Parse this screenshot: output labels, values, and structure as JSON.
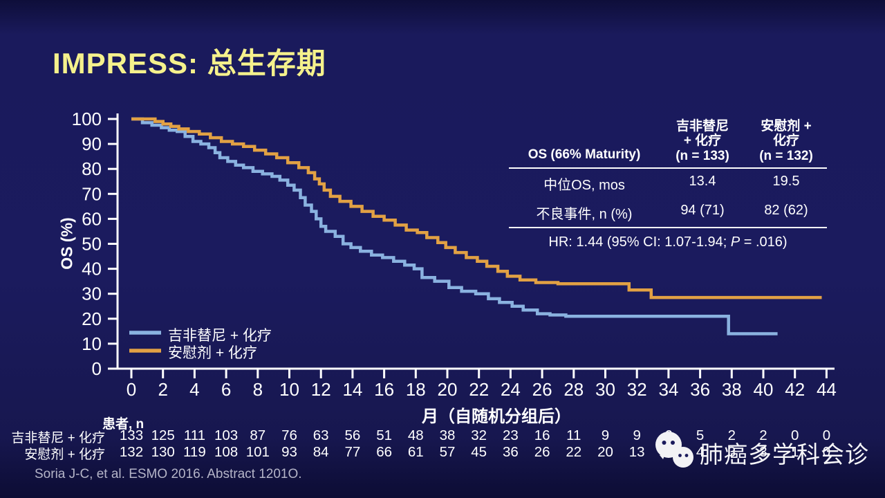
{
  "slide": {
    "title": "IMPRESS: 总生存期",
    "footnote": "Soria J-C, et al. ESMO 2016. Abstract 1201O.",
    "watermark_text": "肺癌多学科会诊",
    "watermark_icon": "wechat-chat-bubbles"
  },
  "colors": {
    "background": "#1b1b5e",
    "title": "#f5f18c",
    "axis": "#ffffff",
    "text": "#ffffff",
    "footnote": "#b5b5c8",
    "gefitinib_line": "#8ab2e0",
    "placebo_line": "#e2a144"
  },
  "stats_table": {
    "header_left": "OS (66% Maturity)",
    "col2_header": "吉非替尼\n+ 化疗\n(n = 133)",
    "col3_header": "安慰剂 +\n化疗\n(n = 132)",
    "rows": [
      {
        "label": "中位OS, mos",
        "gefitinib": "13.4",
        "placebo": "19.5"
      },
      {
        "label": "不良事件, n (%)",
        "gefitinib": "94 (71)",
        "placebo": "82 (62)"
      }
    ],
    "hr_prefix": "HR: 1.44 (95% CI: 1.07-1.94; ",
    "hr_p": "P",
    "hr_suffix": " = .016)"
  },
  "chart_data": {
    "type": "line",
    "subtype": "kaplan-meier-step",
    "title": "IMPRESS: 总生存期",
    "xlabel": "月（自随机分组后）",
    "ylabel": "OS (%)",
    "xlim": [
      0,
      44
    ],
    "ylim": [
      0,
      100
    ],
    "xticks": [
      0,
      2,
      4,
      6,
      8,
      10,
      12,
      14,
      16,
      18,
      20,
      22,
      24,
      26,
      28,
      30,
      32,
      34,
      36,
      38,
      40,
      42,
      44
    ],
    "yticks": [
      0,
      10,
      20,
      30,
      40,
      50,
      60,
      70,
      80,
      90,
      100
    ],
    "grid": false,
    "legend_position": "lower-left",
    "series": [
      {
        "name": "吉非替尼 + 化疗",
        "color": "#8ab2e0",
        "median_os_months": 13.4,
        "points": [
          [
            0,
            100
          ],
          [
            0.7,
            98.5
          ],
          [
            1.3,
            97.5
          ],
          [
            1.9,
            96.5
          ],
          [
            2.4,
            95.5
          ],
          [
            2.9,
            95
          ],
          [
            3.4,
            93
          ],
          [
            3.9,
            91
          ],
          [
            4.4,
            90
          ],
          [
            4.9,
            88.5
          ],
          [
            5.3,
            86.5
          ],
          [
            5.6,
            84.5
          ],
          [
            6.1,
            83
          ],
          [
            6.6,
            81.5
          ],
          [
            7.1,
            80.5
          ],
          [
            7.7,
            79
          ],
          [
            8.3,
            78
          ],
          [
            8.9,
            77
          ],
          [
            9.4,
            75.5
          ],
          [
            9.9,
            73.5
          ],
          [
            10.3,
            71.5
          ],
          [
            10.7,
            68.5
          ],
          [
            11.0,
            65.5
          ],
          [
            11.4,
            63
          ],
          [
            11.7,
            60
          ],
          [
            12.0,
            57
          ],
          [
            12.3,
            55
          ],
          [
            12.9,
            53
          ],
          [
            13.4,
            50
          ],
          [
            13.9,
            48.5
          ],
          [
            14.5,
            47
          ],
          [
            15.2,
            45.5
          ],
          [
            15.9,
            44.5
          ],
          [
            16.6,
            43
          ],
          [
            17.3,
            41.5
          ],
          [
            17.9,
            40
          ],
          [
            18.4,
            36.5
          ],
          [
            19.2,
            35
          ],
          [
            20.1,
            32.5
          ],
          [
            20.9,
            31
          ],
          [
            21.8,
            30
          ],
          [
            22.6,
            28
          ],
          [
            23.3,
            26.5
          ],
          [
            24.1,
            25
          ],
          [
            24.8,
            23.5
          ],
          [
            25.7,
            22
          ],
          [
            26.5,
            21.5
          ],
          [
            27.5,
            21
          ],
          [
            37.8,
            21
          ],
          [
            37.8,
            14
          ],
          [
            40.9,
            14
          ]
        ]
      },
      {
        "name": "安慰剂 + 化疗",
        "color": "#e2a144",
        "median_os_months": 19.5,
        "points": [
          [
            0,
            100
          ],
          [
            1.5,
            99
          ],
          [
            2.0,
            98
          ],
          [
            2.5,
            97
          ],
          [
            3.0,
            96
          ],
          [
            3.6,
            95
          ],
          [
            4.3,
            94
          ],
          [
            5.0,
            92.5
          ],
          [
            5.7,
            91
          ],
          [
            6.4,
            90
          ],
          [
            7.1,
            89
          ],
          [
            7.8,
            87.5
          ],
          [
            8.5,
            86
          ],
          [
            9.2,
            84.5
          ],
          [
            9.9,
            82.5
          ],
          [
            10.6,
            80.5
          ],
          [
            11.2,
            78.5
          ],
          [
            11.6,
            76
          ],
          [
            11.9,
            74
          ],
          [
            12.2,
            71.5
          ],
          [
            12.6,
            69
          ],
          [
            13.2,
            67
          ],
          [
            13.9,
            65
          ],
          [
            14.6,
            63
          ],
          [
            15.3,
            61
          ],
          [
            16.0,
            59.5
          ],
          [
            16.7,
            57.5
          ],
          [
            17.4,
            55.5
          ],
          [
            18.1,
            54.5
          ],
          [
            18.7,
            52.5
          ],
          [
            19.4,
            50.5
          ],
          [
            19.9,
            48.5
          ],
          [
            20.5,
            46.5
          ],
          [
            21.2,
            44.5
          ],
          [
            21.9,
            43
          ],
          [
            22.5,
            41
          ],
          [
            23.2,
            39
          ],
          [
            23.8,
            37
          ],
          [
            24.6,
            35.5
          ],
          [
            25.6,
            34.5
          ],
          [
            27.0,
            34
          ],
          [
            31.5,
            34
          ],
          [
            31.5,
            31.5
          ],
          [
            32.9,
            31.5
          ],
          [
            32.9,
            28.5
          ],
          [
            43.7,
            28.5
          ]
        ]
      }
    ],
    "at_risk": {
      "header": "患者, n",
      "months": [
        0,
        2,
        4,
        6,
        8,
        10,
        12,
        14,
        16,
        18,
        20,
        22,
        24,
        26,
        28,
        30,
        32,
        34,
        36,
        38,
        40,
        42,
        44
      ],
      "rows": [
        {
          "label": "吉非替尼 + 化疗",
          "values": [
            133,
            125,
            111,
            103,
            87,
            76,
            63,
            56,
            51,
            48,
            38,
            32,
            23,
            16,
            11,
            9,
            9,
            6,
            5,
            2,
            2,
            0,
            0
          ]
        },
        {
          "label": "安慰剂 + 化疗",
          "values": [
            132,
            130,
            119,
            108,
            101,
            93,
            84,
            77,
            66,
            61,
            57,
            45,
            36,
            26,
            22,
            20,
            13,
            7,
            4,
            3,
            3,
            1,
            0
          ]
        }
      ]
    }
  }
}
